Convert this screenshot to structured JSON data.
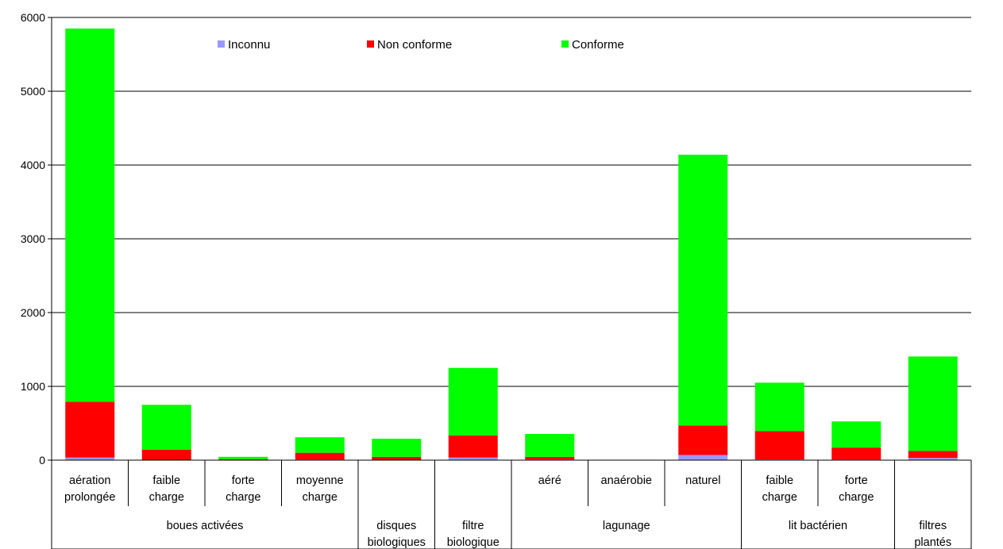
{
  "chart_data": {
    "type": "bar",
    "stacked": true,
    "title": "",
    "xlabel": "",
    "ylabel": "",
    "ylim": [
      0,
      6000
    ],
    "yticks": [
      0,
      1000,
      2000,
      3000,
      4000,
      5000,
      6000
    ],
    "grid": true,
    "legend_position": "top",
    "categories": [
      {
        "label": [
          "aération",
          "prolongée"
        ]
      },
      {
        "label": [
          "faible",
          "charge"
        ]
      },
      {
        "label": [
          "forte",
          "charge"
        ]
      },
      {
        "label": [
          "moyenne",
          "charge"
        ]
      },
      {
        "label": []
      },
      {
        "label": []
      },
      {
        "label": [
          "aéré"
        ]
      },
      {
        "label": [
          "anaérobie"
        ]
      },
      {
        "label": [
          "naturel"
        ]
      },
      {
        "label": [
          "faible",
          "charge"
        ]
      },
      {
        "label": [
          "forte",
          "charge"
        ]
      },
      {
        "label": []
      }
    ],
    "groups": [
      {
        "label": [
          "boues activées"
        ],
        "start": 0,
        "span": 4
      },
      {
        "label": [
          "disques",
          "biologiques"
        ],
        "start": 4,
        "span": 1
      },
      {
        "label": [
          "filtre",
          "biologique"
        ],
        "start": 5,
        "span": 1
      },
      {
        "label": [
          "lagunage"
        ],
        "start": 6,
        "span": 3
      },
      {
        "label": [
          "lit bactérien"
        ],
        "start": 9,
        "span": 2
      },
      {
        "label": [
          "filtres",
          "plantés"
        ],
        "start": 11,
        "span": 1
      }
    ],
    "series": [
      {
        "name": "Inconnu",
        "color": "#9999ff",
        "values": [
          35,
          5,
          3,
          8,
          5,
          35,
          8,
          1,
          70,
          10,
          8,
          30
        ]
      },
      {
        "name": "Non conforme",
        "color": "#ff0000",
        "values": [
          755,
          135,
          7,
          92,
          40,
          300,
          37,
          1,
          400,
          385,
          162,
          95
        ]
      },
      {
        "name": "Conforme",
        "color": "#00ff00",
        "values": [
          5060,
          610,
          35,
          210,
          245,
          915,
          310,
          3,
          3670,
          655,
          355,
          1280
        ]
      }
    ]
  }
}
